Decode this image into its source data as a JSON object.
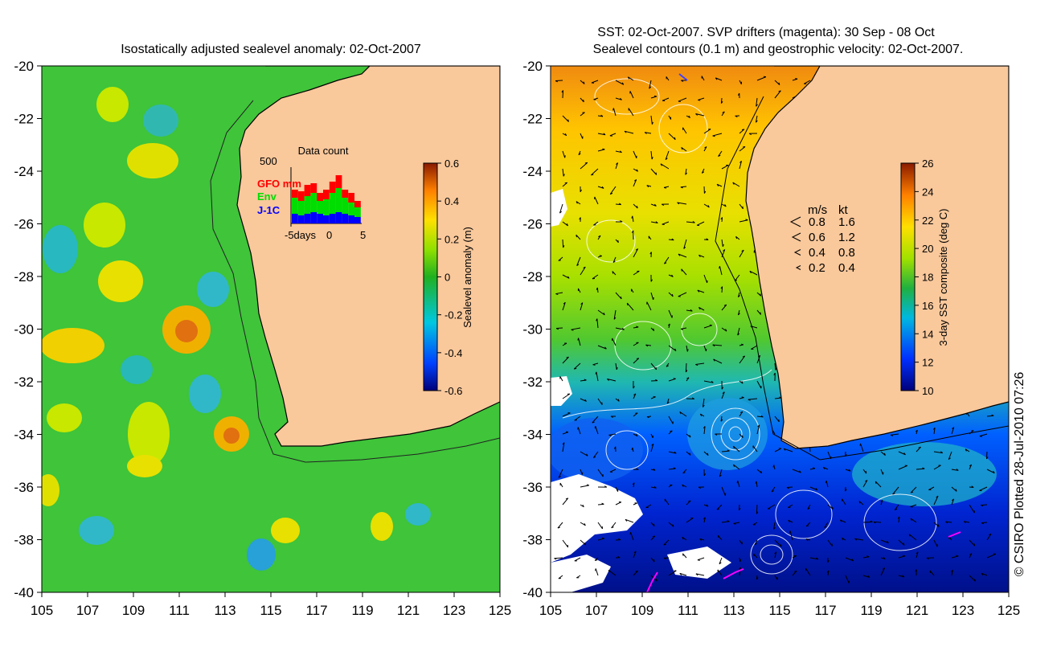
{
  "left_map": {
    "title": "Isostatically adjusted sealevel anomaly: 02-Oct-2007",
    "y_ticks": [
      "-20",
      "-22",
      "-24",
      "-26",
      "-28",
      "-30",
      "-32",
      "-34",
      "-36",
      "-38",
      "-40"
    ],
    "x_ticks": [
      "105",
      "107",
      "109",
      "111",
      "113",
      "115",
      "117",
      "119",
      "121",
      "123",
      "125"
    ],
    "colorbar": {
      "label": "Sealevel anomaly (m)",
      "ticks": [
        "0.6",
        "0.4",
        "0.2",
        "0",
        "-0.2",
        "-0.4",
        "-0.6"
      ]
    },
    "inset": {
      "title": "Data count",
      "max_label": "500",
      "series": [
        {
          "name": "GFO mm",
          "color": "#ff0000"
        },
        {
          "name": "Env",
          "color": "#00dd00"
        },
        {
          "name": "J-1C",
          "color": "#0000ff"
        }
      ],
      "x_left": "-5days",
      "x_mid": "0",
      "x_right": "5"
    }
  },
  "right_map": {
    "title_line1": "SST: 02-Oct-2007. SVP drifters (magenta): 30 Sep - 08 Oct",
    "title_line2": "Sealevel contours (0.1 m) and geostrophic velocity: 02-Oct-2007.",
    "y_ticks": [
      "-20",
      "-22",
      "-24",
      "-26",
      "-28",
      "-30",
      "-32",
      "-34",
      "-36",
      "-38",
      "-40"
    ],
    "x_ticks": [
      "105",
      "107",
      "109",
      "111",
      "113",
      "115",
      "117",
      "119",
      "121",
      "123",
      "125"
    ],
    "colorbar": {
      "label": "3-day SST composite (deg C)",
      "ticks": [
        "26",
        "24",
        "22",
        "20",
        "18",
        "16",
        "14",
        "12",
        "10"
      ]
    },
    "velocity_legend": {
      "header_ms": "m/s",
      "header_kt": "kt",
      "rows": [
        {
          "ms": "0.8",
          "kt": "1.6"
        },
        {
          "ms": "0.6",
          "kt": "1.2"
        },
        {
          "ms": "0.4",
          "kt": "0.8"
        },
        {
          "ms": "0.2",
          "kt": "0.4"
        }
      ]
    }
  },
  "credit": "© CSIRO Plotted 28-Jul-2010 07:26",
  "colors": {
    "land": "#f9c89b",
    "coast": "#000000"
  }
}
